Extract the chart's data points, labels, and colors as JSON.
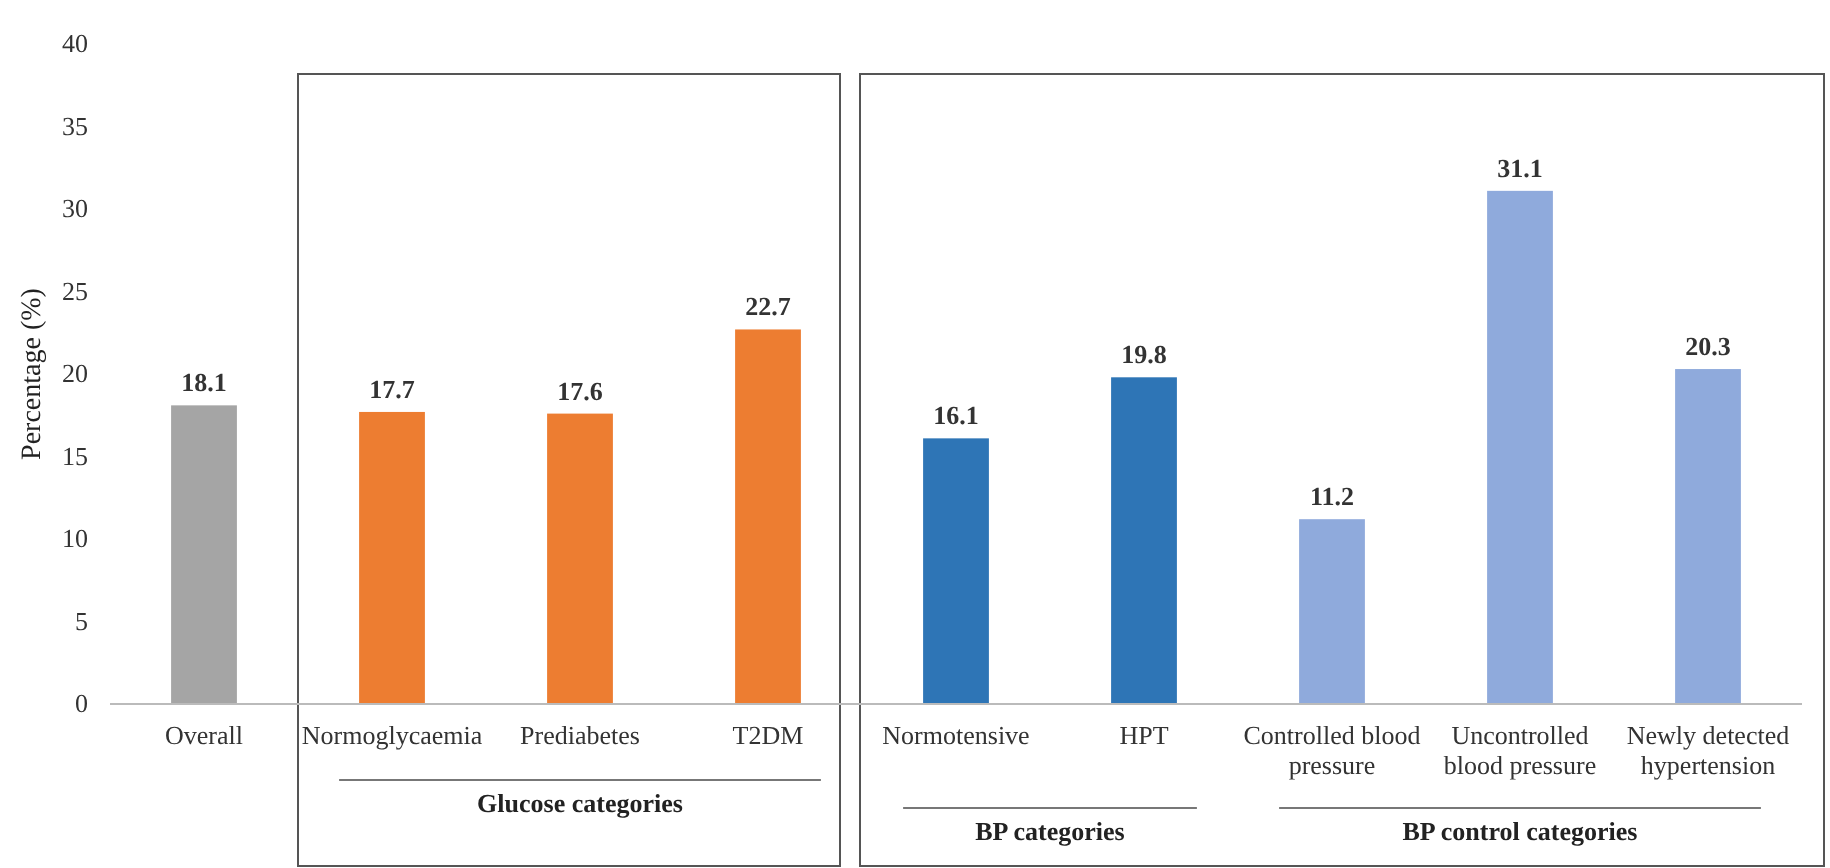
{
  "chart_data": {
    "type": "bar",
    "ylabel": "Percentage (%)",
    "categories": [
      "Overall",
      "Normoglycaemia",
      "Prediabetes",
      "T2DM",
      "Normotensive",
      "HPT",
      "Controlled blood pressure",
      "Uncontrolled blood pressure",
      "Newly detected hypertension"
    ],
    "values": [
      18.1,
      17.7,
      17.6,
      22.7,
      16.1,
      19.8,
      11.2,
      31.1,
      20.3
    ],
    "colors": [
      "#a5a5a5",
      "#ed7d31",
      "#ed7d31",
      "#ed7d31",
      "#2e75b6",
      "#2e75b6",
      "#8faadc",
      "#8faadc",
      "#8faadc"
    ],
    "ylim": [
      0,
      40
    ],
    "yticks": [
      0,
      5,
      10,
      15,
      20,
      25,
      30,
      35,
      40
    ],
    "data_labels": true,
    "annotations": [
      "Glucose categories",
      "BP categories",
      "BP control categories"
    ]
  }
}
